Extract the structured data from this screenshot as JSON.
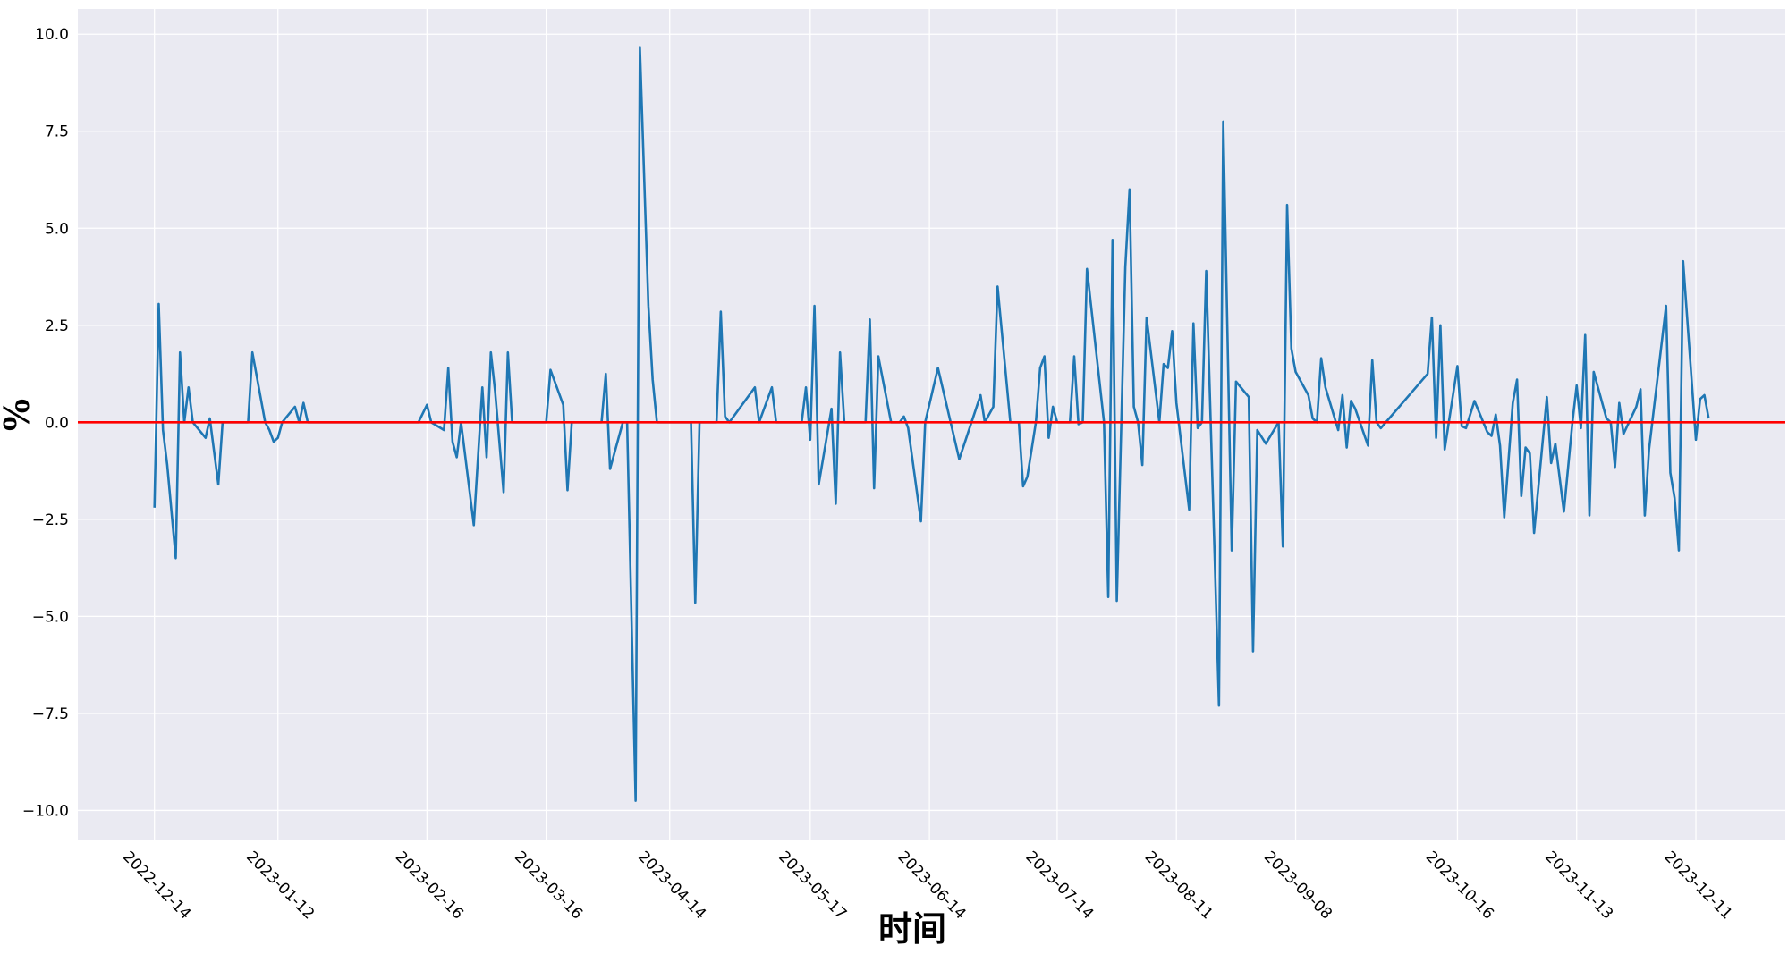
{
  "chart_data": {
    "type": "line",
    "xlabel": "时间",
    "ylabel": "%",
    "color": "#1f77b4",
    "x": [
      "2022-12-14",
      "2022-12-15",
      "2022-12-16",
      "2022-12-17",
      "2022-12-18",
      "2022-12-19",
      "2022-12-20",
      "2022-12-21",
      "2022-12-22",
      "2022-12-23",
      "2022-12-26",
      "2022-12-27",
      "2022-12-29",
      "2022-12-30",
      "2023-01-05",
      "2023-01-06",
      "2023-01-09",
      "2023-01-10",
      "2023-01-11",
      "2023-01-12",
      "2023-01-13",
      "2023-01-16",
      "2023-01-17",
      "2023-01-18",
      "2023-01-19",
      "2023-02-14",
      "2023-02-16",
      "2023-02-17",
      "2023-02-20",
      "2023-02-21",
      "2023-02-22",
      "2023-02-23",
      "2023-02-24",
      "2023-02-27",
      "2023-03-01",
      "2023-03-02",
      "2023-03-03",
      "2023-03-04",
      "2023-03-05",
      "2023-03-06",
      "2023-03-07",
      "2023-03-08",
      "2023-03-16",
      "2023-03-17",
      "2023-03-20",
      "2023-03-21",
      "2023-03-22",
      "2023-03-29",
      "2023-03-30",
      "2023-03-31",
      "2023-04-03",
      "2023-04-04",
      "2023-04-06",
      "2023-04-07",
      "2023-04-09",
      "2023-04-10",
      "2023-04-11",
      "2023-04-19",
      "2023-04-20",
      "2023-04-21",
      "2023-04-25",
      "2023-04-26",
      "2023-04-27",
      "2023-04-28",
      "2023-05-04",
      "2023-05-05",
      "2023-05-08",
      "2023-05-09",
      "2023-05-15",
      "2023-05-16",
      "2023-05-17",
      "2023-05-18",
      "2023-05-19",
      "2023-05-22",
      "2023-05-23",
      "2023-05-24",
      "2023-05-25",
      "2023-05-30",
      "2023-05-31",
      "2023-06-01",
      "2023-06-02",
      "2023-06-05",
      "2023-06-07",
      "2023-06-08",
      "2023-06-09",
      "2023-06-12",
      "2023-06-13",
      "2023-06-16",
      "2023-06-21",
      "2023-06-26",
      "2023-06-27",
      "2023-06-28",
      "2023-06-29",
      "2023-06-30",
      "2023-07-03",
      "2023-07-05",
      "2023-07-06",
      "2023-07-07",
      "2023-07-09",
      "2023-07-10",
      "2023-07-11",
      "2023-07-12",
      "2023-07-13",
      "2023-07-14",
      "2023-07-17",
      "2023-07-18",
      "2023-07-19",
      "2023-07-20",
      "2023-07-21",
      "2023-07-25",
      "2023-07-26",
      "2023-07-27",
      "2023-07-28",
      "2023-07-30",
      "2023-07-31",
      "2023-08-01",
      "2023-08-02",
      "2023-08-03",
      "2023-08-04",
      "2023-08-07",
      "2023-08-08",
      "2023-08-09",
      "2023-08-10",
      "2023-08-11",
      "2023-08-14",
      "2023-08-15",
      "2023-08-16",
      "2023-08-17",
      "2023-08-18",
      "2023-08-20",
      "2023-08-21",
      "2023-08-22",
      "2023-08-24",
      "2023-08-25",
      "2023-08-28",
      "2023-08-29",
      "2023-08-30",
      "2023-09-01",
      "2023-09-04",
      "2023-09-05",
      "2023-09-06",
      "2023-09-07",
      "2023-09-08",
      "2023-09-11",
      "2023-09-12",
      "2023-09-13",
      "2023-09-14",
      "2023-09-15",
      "2023-09-18",
      "2023-09-19",
      "2023-09-20",
      "2023-09-21",
      "2023-09-22",
      "2023-09-25",
      "2023-09-26",
      "2023-09-27",
      "2023-09-28",
      "2023-10-09",
      "2023-10-10",
      "2023-10-11",
      "2023-10-12",
      "2023-10-13",
      "2023-10-16",
      "2023-10-17",
      "2023-10-18",
      "2023-10-20",
      "2023-10-23",
      "2023-10-24",
      "2023-10-25",
      "2023-10-26",
      "2023-10-27",
      "2023-10-29",
      "2023-10-30",
      "2023-10-31",
      "2023-11-01",
      "2023-11-02",
      "2023-11-03",
      "2023-11-06",
      "2023-11-07",
      "2023-11-08",
      "2023-11-10",
      "2023-11-12",
      "2023-11-13",
      "2023-11-14",
      "2023-11-15",
      "2023-11-16",
      "2023-11-17",
      "2023-11-20",
      "2023-11-21",
      "2023-11-22",
      "2023-11-23",
      "2023-11-24",
      "2023-11-27",
      "2023-11-28",
      "2023-11-29",
      "2023-11-30",
      "2023-12-04",
      "2023-12-05",
      "2023-12-06",
      "2023-12-07",
      "2023-12-08",
      "2023-12-11",
      "2023-12-12",
      "2023-12-13",
      "2023-12-14"
    ],
    "values": [
      -2.2,
      3.05,
      -0.2,
      -1.1,
      -2.3,
      -3.5,
      1.8,
      0.0,
      0.9,
      0.0,
      -0.4,
      0.1,
      -1.6,
      0.0,
      0.0,
      1.8,
      0.0,
      -0.2,
      -0.5,
      -0.4,
      0.0,
      0.4,
      0.0,
      0.5,
      0.0,
      0.0,
      0.45,
      0.0,
      -0.2,
      1.4,
      -0.5,
      -0.9,
      0.0,
      -2.65,
      0.9,
      -0.9,
      1.8,
      0.8,
      -0.5,
      -1.8,
      1.8,
      0.0,
      0.0,
      1.35,
      0.45,
      -1.75,
      0.0,
      0.0,
      1.25,
      -1.2,
      0.0,
      0.0,
      -9.75,
      9.65,
      3.0,
      1.1,
      0.0,
      0.0,
      -4.65,
      0.0,
      0.0,
      2.85,
      0.15,
      0.0,
      0.9,
      0.0,
      0.9,
      0.0,
      0.0,
      0.9,
      -0.45,
      3.0,
      -1.6,
      0.35,
      -2.1,
      1.8,
      0.0,
      0.0,
      2.65,
      -1.7,
      1.7,
      0.0,
      0.0,
      0.15,
      -0.15,
      -2.55,
      0.0,
      1.4,
      -0.95,
      0.7,
      0.0,
      0.2,
      0.4,
      3.5,
      0.0,
      0.0,
      -1.65,
      -1.4,
      0.0,
      1.4,
      1.7,
      -0.4,
      0.4,
      0.0,
      0.0,
      1.7,
      -0.05,
      0.0,
      3.95,
      0.0,
      -4.5,
      4.7,
      -4.6,
      4.0,
      6.0,
      0.4,
      0.0,
      -1.1,
      2.7,
      0.0,
      1.5,
      1.4,
      2.35,
      0.5,
      -2.25,
      2.55,
      -0.15,
      0.0,
      3.9,
      -3.5,
      -7.3,
      7.75,
      -3.3,
      1.05,
      0.65,
      -5.9,
      -0.2,
      -0.55,
      0.0,
      -3.2,
      5.6,
      1.9,
      1.3,
      0.7,
      0.1,
      0.0,
      1.65,
      0.9,
      -0.2,
      0.7,
      -0.65,
      0.55,
      0.35,
      -0.6,
      1.6,
      0.0,
      -0.15,
      1.25,
      2.7,
      -0.4,
      2.5,
      -0.7,
      1.45,
      -0.1,
      -0.15,
      0.55,
      -0.25,
      -0.35,
      0.2,
      -0.6,
      -2.45,
      0.5,
      1.1,
      -1.9,
      -0.65,
      -0.8,
      -2.85,
      0.65,
      -1.05,
      -0.55,
      -2.3,
      0.0,
      0.95,
      -0.15,
      2.25,
      -2.4,
      1.3,
      0.1,
      0.0,
      -1.15,
      0.5,
      -0.3,
      0.4,
      0.85,
      -2.4,
      -0.7,
      3.0,
      -1.3,
      -1.95,
      -3.3,
      4.15,
      -0.45,
      0.6,
      0.7,
      0.1
    ],
    "hlines": [
      {
        "y": 0,
        "color": "#ff0000"
      }
    ],
    "xlim": [
      "2022-11-26",
      "2024-01-01"
    ],
    "xticks": [
      "2022-12-14",
      "2023-01-12",
      "2023-02-16",
      "2023-03-16",
      "2023-04-14",
      "2023-05-17",
      "2023-06-14",
      "2023-07-14",
      "2023-08-11",
      "2023-09-08",
      "2023-10-16",
      "2023-11-13",
      "2023-12-11"
    ],
    "ylim": [
      -10.75,
      10.65
    ],
    "yticks": [
      {
        "value": -10,
        "label": "−10.0"
      },
      {
        "value": -7.5,
        "label": "−7.5"
      },
      {
        "value": -5,
        "label": "−5.0"
      },
      {
        "value": -2.5,
        "label": "−2.5"
      },
      {
        "value": 0,
        "label": "0.0"
      },
      {
        "value": 2.5,
        "label": "2.5"
      },
      {
        "value": 5,
        "label": "5.0"
      },
      {
        "value": 7.5,
        "label": "7.5"
      },
      {
        "value": 10,
        "label": "10.0"
      }
    ],
    "grid": true
  }
}
